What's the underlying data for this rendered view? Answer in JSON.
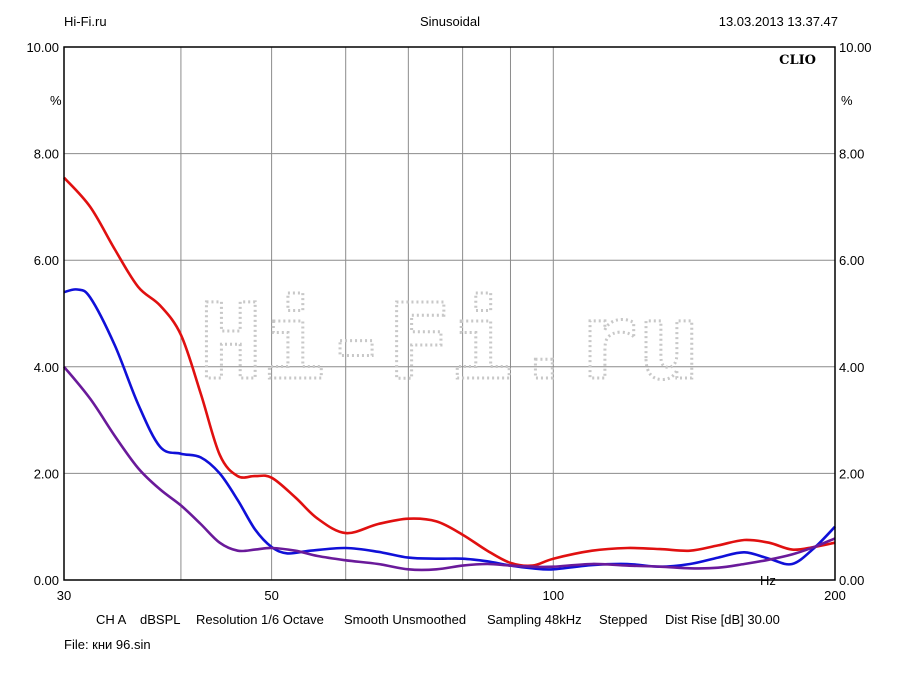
{
  "header": {
    "left": "Hi-Fi.ru",
    "center": "Sinusoidal",
    "right": "13.03.2013 13.37.47"
  },
  "watermark": "Hi-Fi.ru",
  "brand": "CLIO",
  "footer": {
    "settings": [
      "CH A",
      "dBSPL",
      "Resolution 1/6 Octave",
      "Smooth Unsmoothed",
      "Sampling 48kHz",
      "Stepped",
      "Dist Rise [dB] 30.00"
    ],
    "file": "File: кни 96.sin"
  },
  "chart_data": {
    "type": "line",
    "title": "Sinusoidal",
    "xlabel": "Hz",
    "ylabel": "%",
    "xscale": "log",
    "xlim": [
      30,
      200
    ],
    "ylim": [
      0,
      10
    ],
    "grid": true,
    "x_ticks": [
      30,
      50,
      100,
      200
    ],
    "x_gridlines": [
      30,
      40,
      50,
      60,
      70,
      80,
      90,
      100,
      200
    ],
    "y_ticks": [
      "0.00",
      "2.00",
      "4.00",
      "6.00",
      "8.00",
      "10.00"
    ],
    "series": [
      {
        "color": "#e01010",
        "points": [
          [
            30,
            7.55
          ],
          [
            32,
            7.0
          ],
          [
            34,
            6.2
          ],
          [
            36,
            5.5
          ],
          [
            38,
            5.15
          ],
          [
            40,
            4.6
          ],
          [
            42,
            3.5
          ],
          [
            44,
            2.35
          ],
          [
            46,
            1.95
          ],
          [
            48,
            1.95
          ],
          [
            50,
            1.92
          ],
          [
            53,
            1.55
          ],
          [
            56,
            1.15
          ],
          [
            60,
            0.88
          ],
          [
            65,
            1.05
          ],
          [
            70,
            1.15
          ],
          [
            75,
            1.1
          ],
          [
            80,
            0.85
          ],
          [
            85,
            0.55
          ],
          [
            90,
            0.32
          ],
          [
            95,
            0.27
          ],
          [
            100,
            0.4
          ],
          [
            110,
            0.55
          ],
          [
            120,
            0.6
          ],
          [
            130,
            0.58
          ],
          [
            140,
            0.55
          ],
          [
            150,
            0.65
          ],
          [
            160,
            0.75
          ],
          [
            170,
            0.7
          ],
          [
            180,
            0.57
          ],
          [
            190,
            0.62
          ],
          [
            200,
            0.7
          ]
        ]
      },
      {
        "color": "#1010d8",
        "points": [
          [
            30,
            5.4
          ],
          [
            31,
            5.45
          ],
          [
            32,
            5.3
          ],
          [
            34,
            4.4
          ],
          [
            36,
            3.3
          ],
          [
            38,
            2.5
          ],
          [
            40,
            2.37
          ],
          [
            42,
            2.3
          ],
          [
            44,
            2.0
          ],
          [
            46,
            1.5
          ],
          [
            48,
            0.95
          ],
          [
            50,
            0.62
          ],
          [
            52,
            0.5
          ],
          [
            55,
            0.55
          ],
          [
            60,
            0.6
          ],
          [
            65,
            0.53
          ],
          [
            70,
            0.42
          ],
          [
            75,
            0.4
          ],
          [
            80,
            0.4
          ],
          [
            85,
            0.35
          ],
          [
            90,
            0.27
          ],
          [
            95,
            0.22
          ],
          [
            100,
            0.2
          ],
          [
            110,
            0.28
          ],
          [
            120,
            0.3
          ],
          [
            130,
            0.25
          ],
          [
            140,
            0.3
          ],
          [
            150,
            0.42
          ],
          [
            160,
            0.52
          ],
          [
            170,
            0.4
          ],
          [
            180,
            0.3
          ],
          [
            190,
            0.6
          ],
          [
            200,
            1.0
          ]
        ]
      },
      {
        "color": "#6a1a9a",
        "points": [
          [
            30,
            4.0
          ],
          [
            32,
            3.4
          ],
          [
            34,
            2.7
          ],
          [
            36,
            2.1
          ],
          [
            38,
            1.7
          ],
          [
            40,
            1.4
          ],
          [
            42,
            1.05
          ],
          [
            44,
            0.7
          ],
          [
            46,
            0.55
          ],
          [
            48,
            0.57
          ],
          [
            50,
            0.6
          ],
          [
            53,
            0.55
          ],
          [
            56,
            0.45
          ],
          [
            60,
            0.37
          ],
          [
            65,
            0.3
          ],
          [
            70,
            0.2
          ],
          [
            75,
            0.2
          ],
          [
            80,
            0.27
          ],
          [
            85,
            0.3
          ],
          [
            90,
            0.27
          ],
          [
            95,
            0.25
          ],
          [
            100,
            0.25
          ],
          [
            110,
            0.3
          ],
          [
            120,
            0.27
          ],
          [
            130,
            0.25
          ],
          [
            140,
            0.22
          ],
          [
            150,
            0.23
          ],
          [
            160,
            0.3
          ],
          [
            170,
            0.38
          ],
          [
            180,
            0.48
          ],
          [
            190,
            0.62
          ],
          [
            200,
            0.78
          ]
        ]
      }
    ]
  }
}
